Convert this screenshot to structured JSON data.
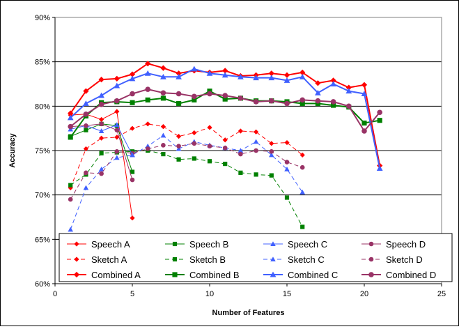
{
  "chart_data": {
    "type": "line",
    "title": "",
    "xlabel": "Number of Features",
    "ylabel": "Accuracy",
    "xlim": [
      0,
      25
    ],
    "ylim": [
      0.6,
      0.9
    ],
    "x_ticks": [
      0,
      5,
      10,
      15,
      20,
      25
    ],
    "x_tick_labels": [
      "0",
      "5",
      "10",
      "15",
      "20",
      "25"
    ],
    "y_ticks": [
      0.6,
      0.65,
      0.7,
      0.75,
      0.8,
      0.85,
      0.9
    ],
    "y_tick_labels": [
      "60%",
      "65%",
      "70%",
      "75%",
      "80%",
      "85%",
      "90%"
    ],
    "grid": "horizontal",
    "legend_placement": "bottom",
    "series": [
      {
        "name": "Speech A",
        "color": "#ff0000",
        "marker": "diamond",
        "dash": "solid",
        "width": 1,
        "x": [
          1,
          2,
          3,
          4,
          5
        ],
        "y": [
          0.79,
          0.791,
          0.785,
          0.794,
          0.674
        ]
      },
      {
        "name": "Speech B",
        "color": "#008000",
        "marker": "square",
        "dash": "solid",
        "width": 1,
        "x": [
          1,
          2,
          3,
          4,
          5
        ],
        "y": [
          0.766,
          0.773,
          0.78,
          0.778,
          0.726
        ]
      },
      {
        "name": "Speech C",
        "color": "#4060ff",
        "marker": "triangle",
        "dash": "solid",
        "width": 1,
        "x": [
          1,
          2,
          3,
          4,
          5
        ],
        "y": [
          0.774,
          0.778,
          0.772,
          0.779,
          0.745
        ]
      },
      {
        "name": "Speech D",
        "color": "#993366",
        "marker": "circle",
        "dash": "solid",
        "width": 1,
        "x": [
          1,
          2,
          3,
          4,
          5
        ],
        "y": [
          0.777,
          0.778,
          0.78,
          0.773,
          0.717
        ]
      },
      {
        "name": "Sketch A",
        "color": "#ff0000",
        "marker": "diamond",
        "dash": "dashed",
        "width": 1,
        "x": [
          1,
          2,
          3,
          4,
          5,
          6,
          7,
          8,
          9,
          10,
          11,
          12,
          13,
          14,
          15,
          16
        ],
        "y": [
          0.708,
          0.752,
          0.764,
          0.765,
          0.775,
          0.78,
          0.777,
          0.766,
          0.77,
          0.776,
          0.762,
          0.772,
          0.771,
          0.758,
          0.759,
          0.745
        ]
      },
      {
        "name": "Sketch B",
        "color": "#008000",
        "marker": "square",
        "dash": "dashed",
        "width": 1,
        "x": [
          1,
          2,
          3,
          4,
          5,
          6,
          7,
          8,
          9,
          10,
          11,
          12,
          13,
          14,
          15,
          16
        ],
        "y": [
          0.711,
          0.723,
          0.747,
          0.748,
          0.749,
          0.75,
          0.746,
          0.74,
          0.741,
          0.738,
          0.735,
          0.725,
          0.723,
          0.722,
          0.697,
          0.664
        ]
      },
      {
        "name": "Sketch C",
        "color": "#4060ff",
        "marker": "triangle",
        "dash": "dashed",
        "width": 1,
        "x": [
          1,
          2,
          3,
          4,
          5,
          6,
          7,
          8,
          9,
          10,
          11,
          12,
          13,
          14,
          15,
          16
        ],
        "y": [
          0.661,
          0.708,
          0.729,
          0.742,
          0.745,
          0.755,
          0.767,
          0.752,
          0.76,
          0.756,
          0.753,
          0.75,
          0.76,
          0.745,
          0.729,
          0.703
        ]
      },
      {
        "name": "Sketch D",
        "color": "#993366",
        "marker": "circle",
        "dash": "dashed",
        "width": 1,
        "x": [
          1,
          2,
          3,
          4,
          5,
          6,
          7,
          8,
          9,
          10,
          11,
          12,
          13,
          14,
          15,
          16
        ],
        "y": [
          0.695,
          0.725,
          0.724,
          0.749,
          0.747,
          0.752,
          0.756,
          0.755,
          0.758,
          0.755,
          0.753,
          0.746,
          0.75,
          0.749,
          0.737,
          0.731
        ]
      },
      {
        "name": "Combined A",
        "color": "#ff0000",
        "marker": "diamond",
        "dash": "solid",
        "width": 2,
        "x": [
          1,
          2,
          3,
          4,
          5,
          6,
          7,
          8,
          9,
          10,
          11,
          12,
          13,
          14,
          15,
          16,
          17,
          18,
          19,
          20,
          21
        ],
        "y": [
          0.792,
          0.817,
          0.83,
          0.831,
          0.836,
          0.848,
          0.843,
          0.837,
          0.84,
          0.838,
          0.84,
          0.834,
          0.835,
          0.837,
          0.835,
          0.838,
          0.826,
          0.829,
          0.821,
          0.824,
          0.733
        ]
      },
      {
        "name": "Combined B",
        "color": "#008000",
        "marker": "square",
        "dash": "solid",
        "width": 2,
        "x": [
          1,
          2,
          3,
          4,
          5,
          6,
          7,
          8,
          9,
          10,
          11,
          12,
          13,
          14,
          15,
          16,
          17,
          18,
          19,
          20,
          21
        ],
        "y": [
          0.765,
          0.789,
          0.804,
          0.805,
          0.804,
          0.807,
          0.809,
          0.803,
          0.807,
          0.817,
          0.808,
          0.809,
          0.806,
          0.806,
          0.805,
          0.803,
          0.803,
          0.801,
          0.799,
          0.781,
          0.784
        ]
      },
      {
        "name": "Combined C",
        "color": "#4060ff",
        "marker": "triangle",
        "dash": "solid",
        "width": 2,
        "x": [
          1,
          2,
          3,
          4,
          5,
          6,
          7,
          8,
          9,
          10,
          11,
          12,
          13,
          14,
          15,
          16,
          17,
          18,
          19,
          20,
          21
        ],
        "y": [
          0.787,
          0.803,
          0.812,
          0.823,
          0.831,
          0.837,
          0.833,
          0.833,
          0.842,
          0.837,
          0.835,
          0.833,
          0.832,
          0.832,
          0.829,
          0.833,
          0.815,
          0.825,
          0.817,
          0.814,
          0.73
        ]
      },
      {
        "name": "Combined D",
        "color": "#993366",
        "marker": "circle",
        "dash": "solid",
        "width": 2,
        "x": [
          1,
          2,
          3,
          4,
          5,
          6,
          7,
          8,
          9,
          10,
          11,
          12,
          13,
          14,
          15,
          16,
          17,
          18,
          19,
          20,
          21
        ],
        "y": [
          0.777,
          0.791,
          0.802,
          0.806,
          0.814,
          0.819,
          0.815,
          0.814,
          0.811,
          0.814,
          0.812,
          0.809,
          0.805,
          0.806,
          0.803,
          0.807,
          0.806,
          0.805,
          0.8,
          0.772,
          0.793
        ]
      }
    ]
  }
}
